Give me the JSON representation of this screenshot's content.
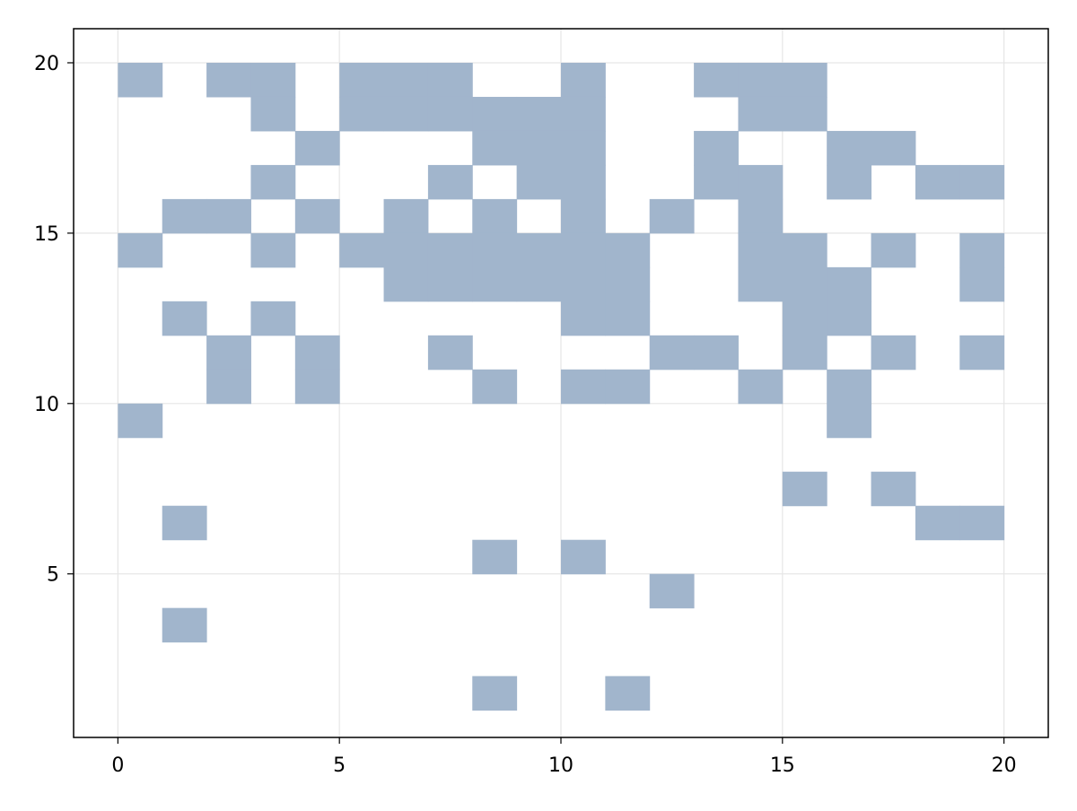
{
  "chart_data": {
    "type": "heatmap",
    "title": "",
    "xlabel": "",
    "ylabel": "",
    "xlim": [
      -1,
      21
    ],
    "ylim": [
      0.2,
      21
    ],
    "x_ticks": [
      0,
      5,
      10,
      15,
      20
    ],
    "y_ticks": [
      5,
      10,
      15,
      20
    ],
    "x_tick_labels": [
      "0",
      "5",
      "10",
      "15",
      "20"
    ],
    "y_tick_labels": [
      "5",
      "10",
      "15",
      "20"
    ],
    "grid": true,
    "fill_color": "#a1b5cc",
    "grid_color": "#e6e6e6",
    "cell_size": 1,
    "cells": [
      [
        0,
        19
      ],
      [
        2,
        19
      ],
      [
        3,
        19
      ],
      [
        5,
        19
      ],
      [
        6,
        19
      ],
      [
        7,
        19
      ],
      [
        10,
        19
      ],
      [
        13,
        19
      ],
      [
        14,
        19
      ],
      [
        15,
        19
      ],
      [
        3,
        18
      ],
      [
        5,
        18
      ],
      [
        6,
        18
      ],
      [
        7,
        18
      ],
      [
        8,
        18
      ],
      [
        9,
        18
      ],
      [
        10,
        18
      ],
      [
        14,
        18
      ],
      [
        15,
        18
      ],
      [
        4,
        17
      ],
      [
        8,
        17
      ],
      [
        9,
        17
      ],
      [
        10,
        17
      ],
      [
        13,
        17
      ],
      [
        16,
        17
      ],
      [
        17,
        17
      ],
      [
        3,
        16
      ],
      [
        7,
        16
      ],
      [
        9,
        16
      ],
      [
        10,
        16
      ],
      [
        13,
        16
      ],
      [
        14,
        16
      ],
      [
        16,
        16
      ],
      [
        18,
        16
      ],
      [
        19,
        16
      ],
      [
        1,
        15
      ],
      [
        2,
        15
      ],
      [
        4,
        15
      ],
      [
        6,
        15
      ],
      [
        8,
        15
      ],
      [
        10,
        15
      ],
      [
        12,
        15
      ],
      [
        14,
        15
      ],
      [
        0,
        14
      ],
      [
        3,
        14
      ],
      [
        5,
        14
      ],
      [
        6,
        14
      ],
      [
        7,
        14
      ],
      [
        8,
        14
      ],
      [
        9,
        14
      ],
      [
        10,
        14
      ],
      [
        11,
        14
      ],
      [
        14,
        14
      ],
      [
        15,
        14
      ],
      [
        17,
        14
      ],
      [
        19,
        14
      ],
      [
        6,
        13
      ],
      [
        7,
        13
      ],
      [
        8,
        13
      ],
      [
        9,
        13
      ],
      [
        10,
        13
      ],
      [
        11,
        13
      ],
      [
        14,
        13
      ],
      [
        15,
        13
      ],
      [
        16,
        13
      ],
      [
        19,
        13
      ],
      [
        1,
        12
      ],
      [
        3,
        12
      ],
      [
        10,
        12
      ],
      [
        11,
        12
      ],
      [
        15,
        12
      ],
      [
        16,
        12
      ],
      [
        2,
        11
      ],
      [
        4,
        11
      ],
      [
        7,
        11
      ],
      [
        12,
        11
      ],
      [
        13,
        11
      ],
      [
        15,
        11
      ],
      [
        17,
        11
      ],
      [
        19,
        11
      ],
      [
        2,
        10
      ],
      [
        4,
        10
      ],
      [
        8,
        10
      ],
      [
        10,
        10
      ],
      [
        11,
        10
      ],
      [
        14,
        10
      ],
      [
        16,
        10
      ],
      [
        0,
        9
      ],
      [
        16,
        9
      ],
      [
        15,
        7
      ],
      [
        17,
        7
      ],
      [
        1,
        6
      ],
      [
        18,
        6
      ],
      [
        19,
        6
      ],
      [
        8,
        5
      ],
      [
        10,
        5
      ],
      [
        12,
        4
      ],
      [
        1,
        3
      ],
      [
        8,
        1
      ],
      [
        11,
        1
      ]
    ]
  }
}
